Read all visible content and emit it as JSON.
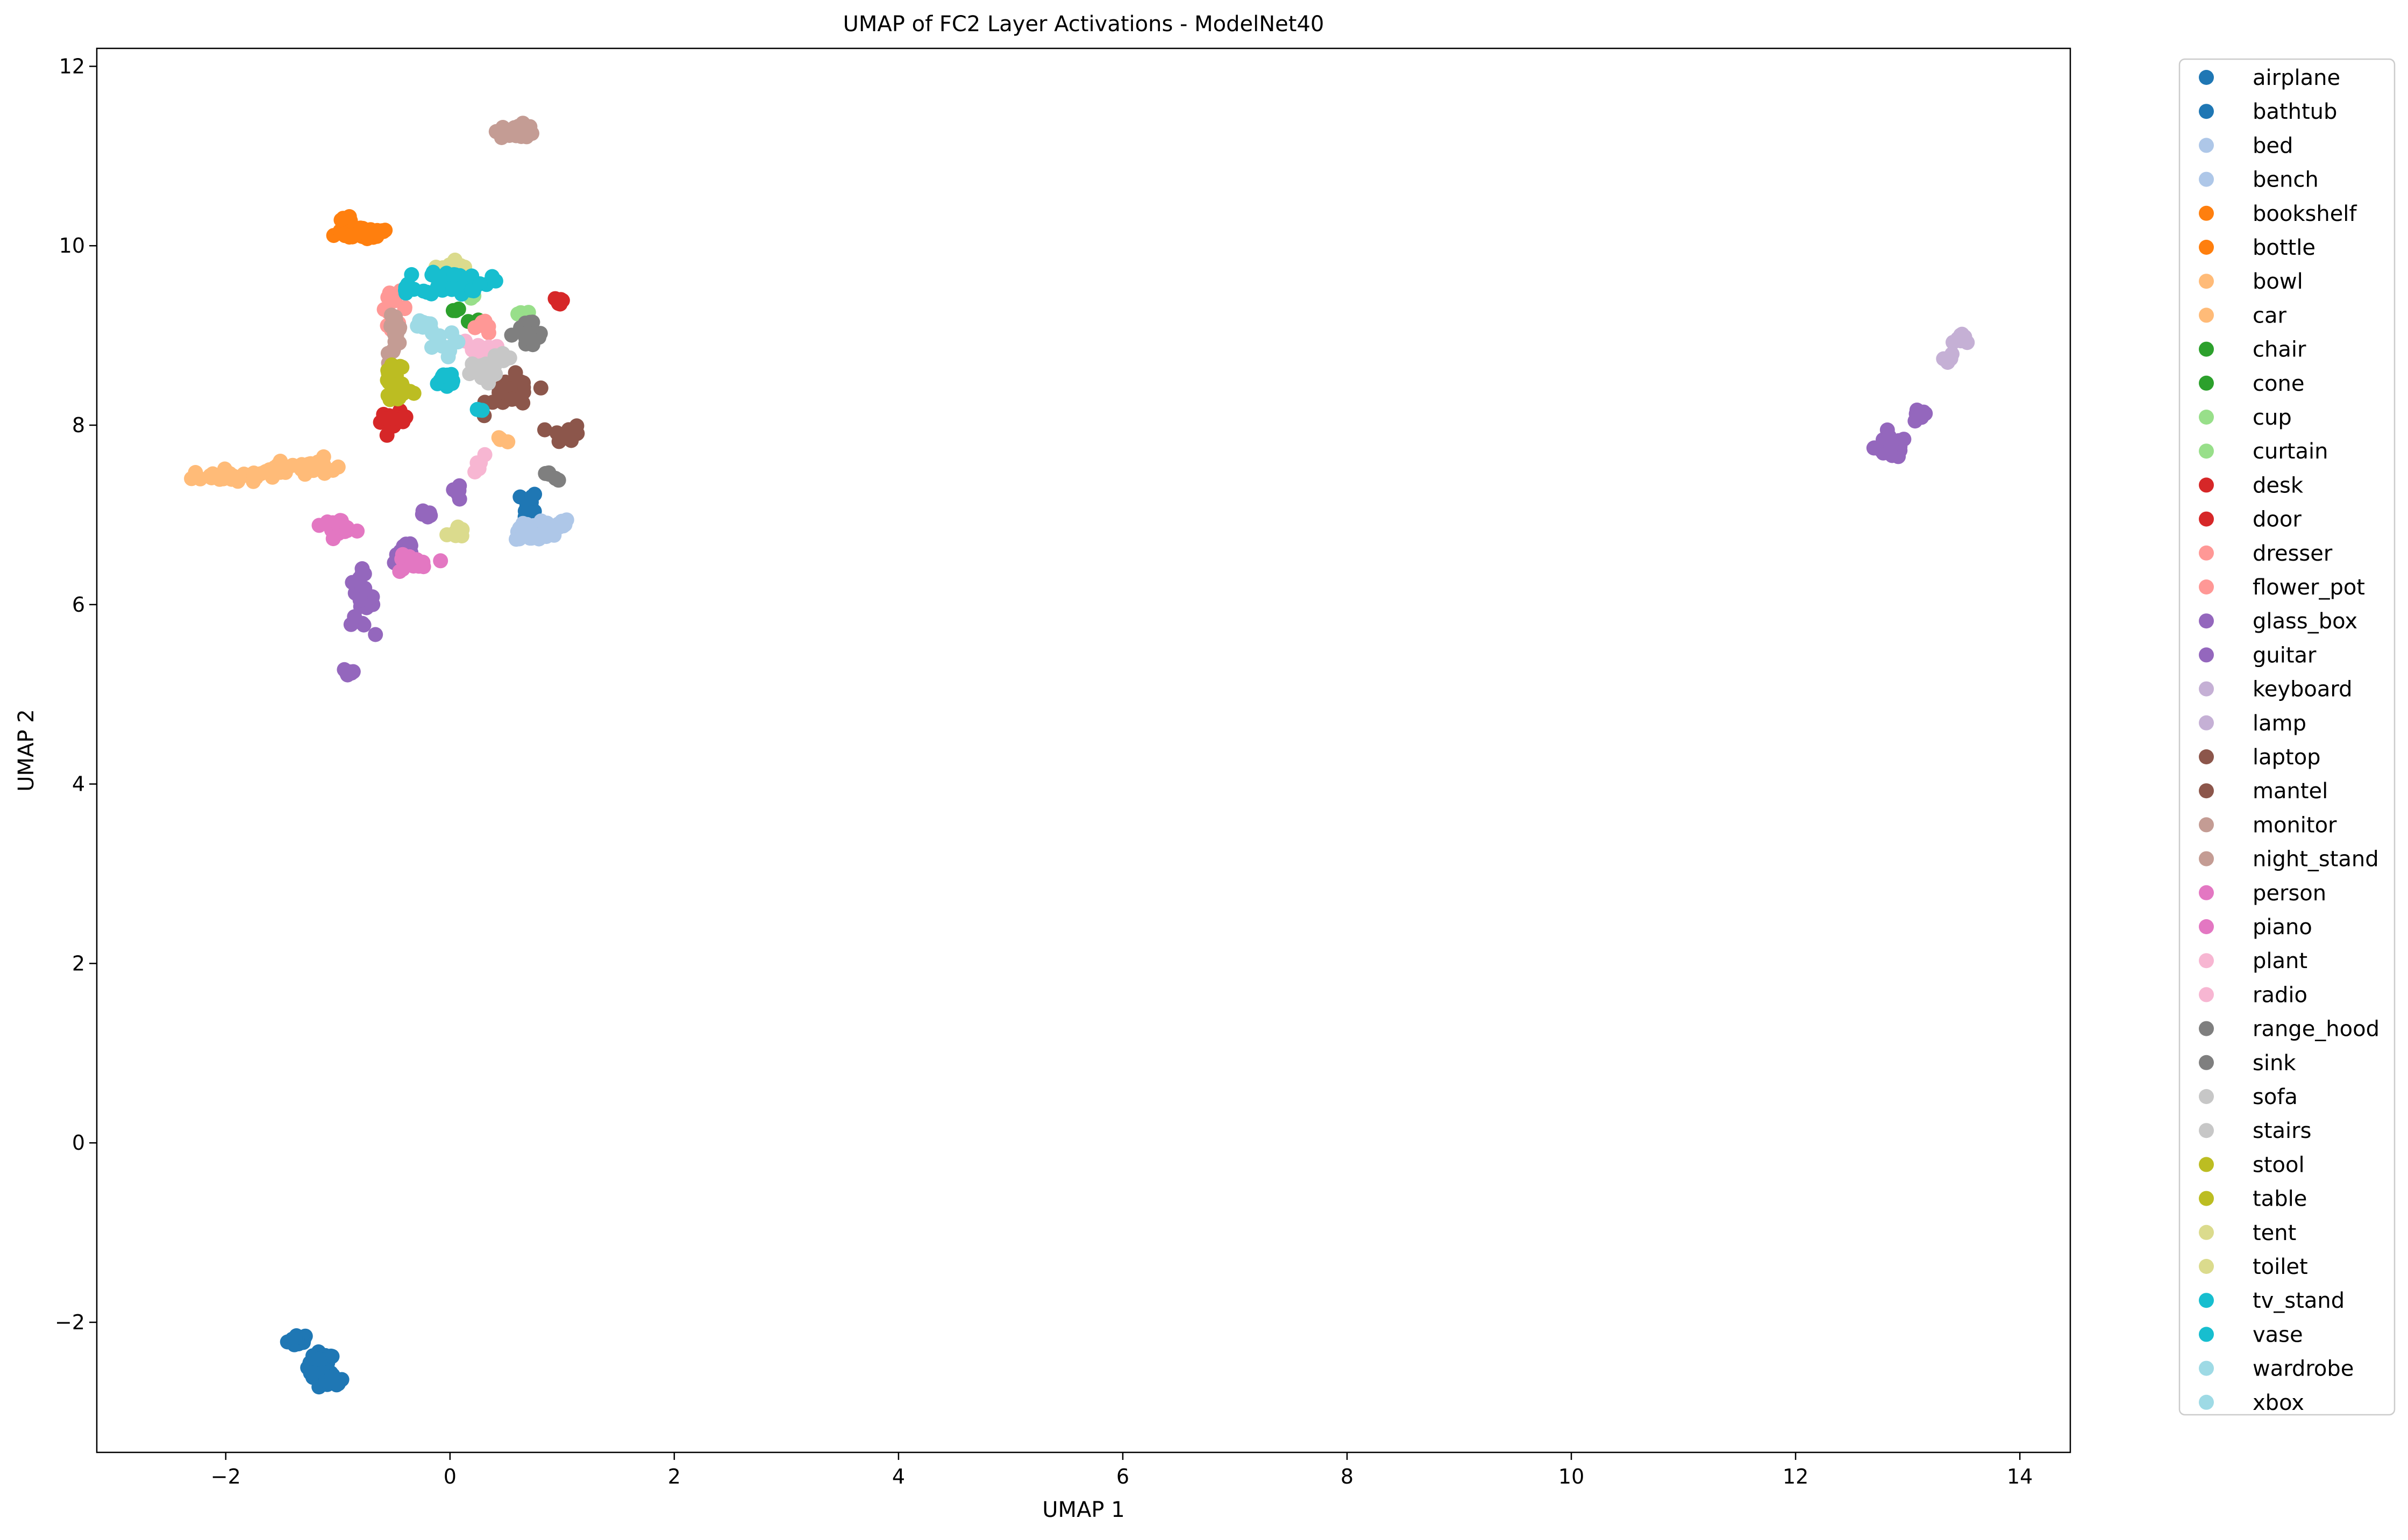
{
  "chart_data": {
    "type": "scatter",
    "title": "UMAP of FC2 Layer Activations - ModelNet40",
    "xlabel": "UMAP 1",
    "ylabel": "UMAP 2",
    "xlim": [
      -3.15,
      14.45
    ],
    "ylim": [
      -3.45,
      12.2
    ],
    "xticks": [
      -2,
      0,
      2,
      4,
      6,
      8,
      10,
      12,
      14
    ],
    "yticks": [
      -2,
      0,
      2,
      4,
      6,
      8,
      10,
      12
    ],
    "xtick_labels": [
      "−2",
      "0",
      "2",
      "4",
      "6",
      "8",
      "10",
      "12",
      "14"
    ],
    "ytick_labels": [
      "−2",
      "0",
      "2",
      "4",
      "6",
      "8",
      "10",
      "12"
    ],
    "legend_position": "outside-right",
    "series": [
      {
        "name": "airplane",
        "color": "#1f77b4",
        "clusters": [
          [
            -1.35,
            -2.2,
            0.08,
            0.06,
            18
          ],
          [
            -1.15,
            -2.5,
            0.1,
            0.14,
            30
          ]
        ]
      },
      {
        "name": "bathtub",
        "color": "#1f77b4",
        "clusters": [
          [
            0.7,
            7.05,
            0.06,
            0.2,
            16
          ],
          [
            -1.05,
            -2.65,
            0.08,
            0.06,
            14
          ]
        ]
      },
      {
        "name": "bed",
        "color": "#aec7e8",
        "clusters": [
          [
            0.75,
            6.8,
            0.14,
            0.08,
            40
          ]
        ]
      },
      {
        "name": "bench",
        "color": "#aec7e8",
        "clusters": [
          [
            0.95,
            6.9,
            0.1,
            0.05,
            14
          ]
        ]
      },
      {
        "name": "bookshelf",
        "color": "#ff7f0e",
        "clusters": [
          [
            -0.75,
            10.15,
            0.22,
            0.07,
            34
          ]
        ]
      },
      {
        "name": "bottle",
        "color": "#ff7f0e",
        "clusters": [
          [
            -0.95,
            10.28,
            0.06,
            0.05,
            8
          ]
        ]
      },
      {
        "name": "bowl",
        "color": "#ffbb78",
        "clusters": [
          [
            -1.2,
            7.55,
            0.15,
            0.07,
            22
          ],
          [
            0.45,
            7.85,
            0.04,
            0.03,
            4
          ]
        ]
      },
      {
        "name": "car",
        "color": "#ffbb78",
        "clusters": [
          [
            -2.0,
            7.43,
            0.25,
            0.06,
            30
          ],
          [
            -1.55,
            7.5,
            0.12,
            0.05,
            12
          ]
        ]
      },
      {
        "name": "chair",
        "color": "#2ca02c",
        "clusters": [
          [
            0.25,
            9.15,
            0.05,
            0.04,
            4
          ]
        ]
      },
      {
        "name": "cone",
        "color": "#2ca02c",
        "clusters": [
          [
            0.05,
            9.3,
            0.04,
            0.04,
            3
          ]
        ]
      },
      {
        "name": "cup",
        "color": "#98df8a",
        "clusters": [
          [
            0.65,
            9.25,
            0.05,
            0.04,
            4
          ]
        ]
      },
      {
        "name": "curtain",
        "color": "#98df8a",
        "clusters": [
          [
            0.2,
            9.45,
            0.05,
            0.04,
            4
          ]
        ]
      },
      {
        "name": "desk",
        "color": "#d62728",
        "clusters": [
          [
            -0.5,
            8.05,
            0.1,
            0.08,
            18
          ]
        ]
      },
      {
        "name": "door",
        "color": "#d62728",
        "clusters": [
          [
            0.98,
            9.38,
            0.04,
            0.04,
            8
          ]
        ]
      },
      {
        "name": "dresser",
        "color": "#ff9896",
        "clusters": [
          [
            -0.5,
            9.3,
            0.1,
            0.15,
            14
          ]
        ]
      },
      {
        "name": "flower_pot",
        "color": "#ff9896",
        "clusters": [
          [
            0.3,
            9.1,
            0.08,
            0.08,
            8
          ]
        ]
      },
      {
        "name": "glass_box",
        "color": "#9467bd",
        "clusters": [
          [
            -0.8,
            6.05,
            0.1,
            0.25,
            24
          ],
          [
            -0.4,
            6.6,
            0.08,
            0.12,
            12
          ],
          [
            -0.9,
            5.25,
            0.05,
            0.05,
            10
          ]
        ]
      },
      {
        "name": "guitar",
        "color": "#9467bd",
        "clusters": [
          [
            12.85,
            7.75,
            0.12,
            0.1,
            40
          ],
          [
            13.1,
            8.1,
            0.06,
            0.06,
            12
          ],
          [
            -0.2,
            7.0,
            0.05,
            0.05,
            6
          ],
          [
            0.05,
            7.25,
            0.04,
            0.08,
            6
          ]
        ]
      },
      {
        "name": "keyboard",
        "color": "#c5b0d5",
        "clusters": [
          [
            13.5,
            8.95,
            0.06,
            0.05,
            8
          ]
        ]
      },
      {
        "name": "lamp",
        "color": "#c5b0d5",
        "clusters": [
          [
            13.35,
            8.75,
            0.05,
            0.05,
            6
          ]
        ]
      },
      {
        "name": "laptop",
        "color": "#8c564b",
        "clusters": [
          [
            0.55,
            8.35,
            0.18,
            0.16,
            30
          ]
        ]
      },
      {
        "name": "mantel",
        "color": "#8c564b",
        "clusters": [
          [
            1.05,
            7.9,
            0.12,
            0.08,
            10
          ]
        ]
      },
      {
        "name": "monitor",
        "color": "#c49c94",
        "clusters": [
          [
            0.6,
            11.28,
            0.14,
            0.06,
            30
          ]
        ]
      },
      {
        "name": "night_stand",
        "color": "#c49c94",
        "clusters": [
          [
            -0.5,
            9.0,
            0.06,
            0.25,
            18
          ]
        ]
      },
      {
        "name": "person",
        "color": "#e377c2",
        "clusters": [
          [
            -1.0,
            6.88,
            0.12,
            0.06,
            16
          ]
        ]
      },
      {
        "name": "piano",
        "color": "#e377c2",
        "clusters": [
          [
            -0.35,
            6.45,
            0.14,
            0.08,
            22
          ]
        ]
      },
      {
        "name": "plant",
        "color": "#f7b6d2",
        "clusters": [
          [
            0.25,
            8.85,
            0.12,
            0.1,
            12
          ]
        ]
      },
      {
        "name": "radio",
        "color": "#f7b6d2",
        "clusters": [
          [
            0.25,
            7.55,
            0.05,
            0.1,
            6
          ]
        ]
      },
      {
        "name": "range_hood",
        "color": "#7f7f7f",
        "clusters": [
          [
            0.7,
            9.0,
            0.12,
            0.15,
            20
          ]
        ]
      },
      {
        "name": "sink",
        "color": "#7f7f7f",
        "clusters": [
          [
            0.9,
            7.42,
            0.06,
            0.06,
            5
          ]
        ]
      },
      {
        "name": "sofa",
        "color": "#c7c7c7",
        "clusters": [
          [
            0.3,
            8.6,
            0.1,
            0.12,
            24
          ]
        ]
      },
      {
        "name": "stairs",
        "color": "#c7c7c7",
        "clusters": [
          [
            0.45,
            8.75,
            0.08,
            0.06,
            8
          ]
        ]
      },
      {
        "name": "stool",
        "color": "#bcbd22",
        "clusters": [
          [
            -0.45,
            8.4,
            0.1,
            0.12,
            26
          ]
        ]
      },
      {
        "name": "table",
        "color": "#bcbd22",
        "clusters": [
          [
            -0.5,
            8.6,
            0.08,
            0.1,
            16
          ]
        ]
      },
      {
        "name": "tent",
        "color": "#dbdb8d",
        "clusters": [
          [
            0.05,
            9.75,
            0.1,
            0.08,
            14
          ]
        ]
      },
      {
        "name": "toilet",
        "color": "#dbdb8d",
        "clusters": [
          [
            0.05,
            6.8,
            0.06,
            0.06,
            8
          ]
        ]
      },
      {
        "name": "tv_stand",
        "color": "#17becf",
        "clusters": [
          [
            0.05,
            9.6,
            0.25,
            0.12,
            40
          ],
          [
            -0.05,
            8.5,
            0.1,
            0.1,
            16
          ]
        ]
      },
      {
        "name": "vase",
        "color": "#17becf",
        "clusters": [
          [
            0.25,
            8.2,
            0.06,
            0.06,
            4
          ],
          [
            -0.4,
            9.5,
            0.06,
            0.05,
            4
          ]
        ]
      },
      {
        "name": "wardrobe",
        "color": "#9edae5",
        "clusters": [
          [
            -0.1,
            8.9,
            0.12,
            0.12,
            10
          ]
        ]
      },
      {
        "name": "xbox",
        "color": "#9edae5",
        "clusters": [
          [
            -0.25,
            9.1,
            0.08,
            0.1,
            8
          ]
        ]
      }
    ]
  }
}
